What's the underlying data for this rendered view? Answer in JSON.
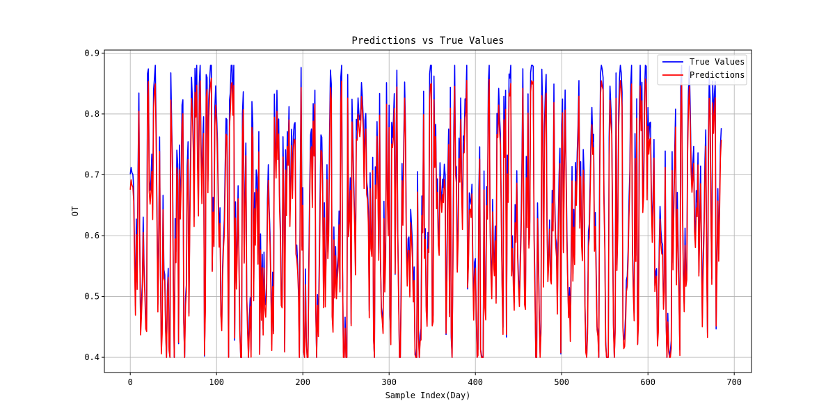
{
  "chart_data": {
    "type": "line",
    "title": "Predictions vs True Values",
    "xlabel": "Sample Index(Day)",
    "ylabel": "OT",
    "xlim": [
      -30,
      720
    ],
    "ylim": [
      0.375,
      0.905
    ],
    "x_ticks": [
      0,
      100,
      200,
      300,
      400,
      500,
      600,
      700
    ],
    "y_ticks": [
      0.4,
      0.5,
      0.6,
      0.7,
      0.8,
      0.9
    ],
    "x_tick_labels": [
      "0",
      "100",
      "200",
      "300",
      "400",
      "500",
      "600",
      "700"
    ],
    "y_tick_labels": [
      "0.4",
      "0.5",
      "0.6",
      "0.7",
      "0.8",
      "0.9"
    ],
    "grid": true,
    "legend_position": "top-right",
    "n_points": 686,
    "series": [
      {
        "name": "True Values",
        "color": "#0000ff"
      },
      {
        "name": "Predictions",
        "color": "#ff0000"
      }
    ],
    "value_range": [
      0.4,
      0.88
    ]
  }
}
